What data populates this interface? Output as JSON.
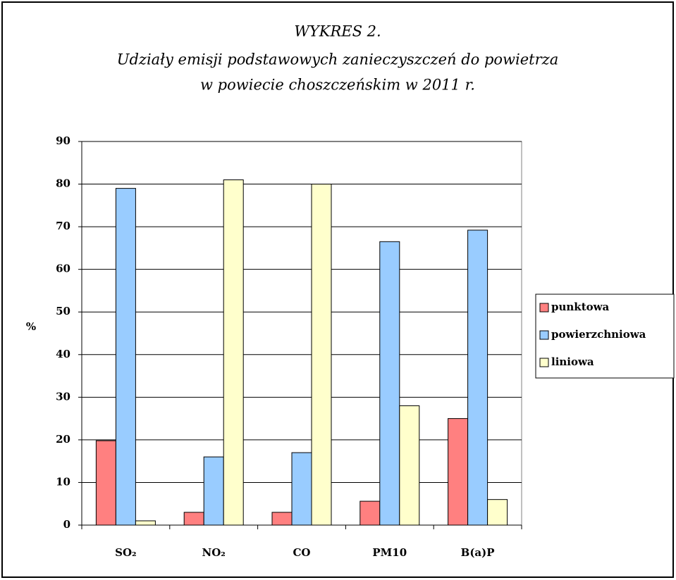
{
  "chart_data": {
    "type": "bar",
    "title": [
      "WYKRES 2.",
      "Udziały emisji podstawowych zanieczyszczeń do powietrza",
      "w powiecie choszczeńskim w 2011 r."
    ],
    "ylabel": "%",
    "categories": [
      "SO₂",
      "NO₂",
      "CO",
      "PM10",
      "B(a)P"
    ],
    "series": [
      {
        "name": "punktowa",
        "color": "#ff8080",
        "values": [
          19.8,
          3,
          3,
          5.6,
          25
        ]
      },
      {
        "name": "powierzchniowa",
        "color": "#99ccff",
        "values": [
          79,
          16,
          17,
          66.5,
          69.2
        ]
      },
      {
        "name": "liniowa",
        "color": "#ffffcc",
        "values": [
          1,
          81,
          80,
          28,
          6
        ]
      }
    ],
    "ylim": [
      0,
      90
    ],
    "yticks": [
      0,
      10,
      20,
      30,
      40,
      50,
      60,
      70,
      80,
      90
    ],
    "grid": true,
    "legend": "right"
  }
}
